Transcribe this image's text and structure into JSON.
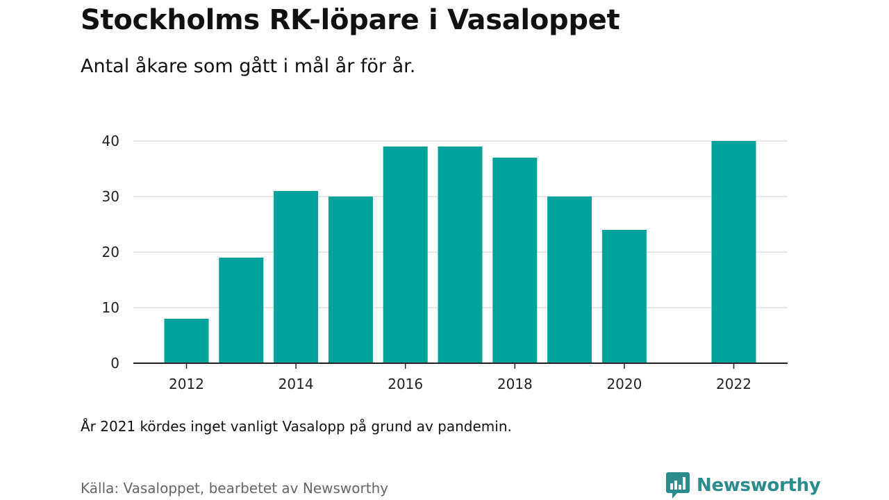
{
  "header": {
    "title": "Stockholms RK-löpare i Vasaloppet",
    "subtitle": "Antal åkare som gått i mål år för år."
  },
  "note": "År 2021 kördes inget vanligt Vasalopp på grund av pandemin.",
  "source": "Källa: Vasaloppet, bearbetet av Newsworthy",
  "brand": {
    "name": "Newsworthy",
    "icon": "bar-chart-speech-icon"
  },
  "colors": {
    "bar": "#00a39a",
    "grid": "#dddddd",
    "axis": "#222222",
    "brand": "#2b8c8c"
  },
  "chart_data": {
    "type": "bar",
    "categories": [
      "2012",
      "2013",
      "2014",
      "2015",
      "2016",
      "2017",
      "2018",
      "2019",
      "2020",
      "2021",
      "2022"
    ],
    "values": [
      8,
      19,
      31,
      30,
      39,
      39,
      37,
      30,
      24,
      null,
      40
    ],
    "xtick_labels": [
      "2012",
      "2014",
      "2016",
      "2018",
      "2020",
      "2022"
    ],
    "yticks": [
      0,
      10,
      20,
      30,
      40
    ],
    "ylim": [
      0,
      40
    ],
    "grid": true,
    "legend": "none",
    "title": "Stockholms RK-löpare i Vasaloppet",
    "subtitle": "Antal åkare som gått i mål år för år.",
    "xlabel": "",
    "ylabel": ""
  }
}
